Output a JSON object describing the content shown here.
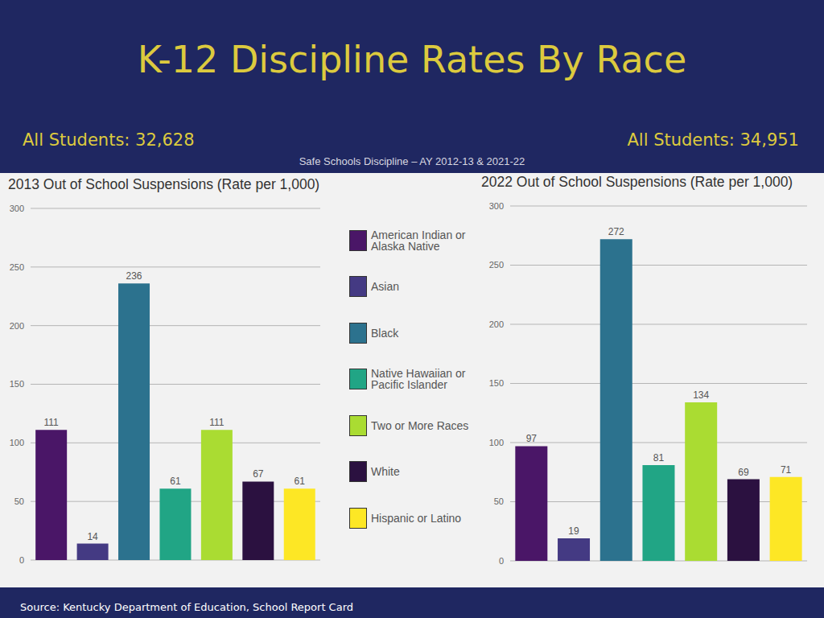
{
  "title": "K-12 Discipline Rates By Race",
  "subtitle": "Safe Schools Discipline – AY 2012-13 & 2021-22",
  "source": "Source: Kentucky Department of Education, School Report Card",
  "chart_data": [
    {
      "type": "bar",
      "title": "2013 Out of School Suspensions (Rate per 1,000)",
      "subtitle": "All Students: 32,628",
      "categories": [
        "American Indian or Alaska Native",
        "Asian",
        "Black",
        "Native Hawaiian or Pacific Islander",
        "Two or More Races",
        "White",
        "Hispanic or Latino"
      ],
      "values": [
        111,
        14,
        236,
        61,
        111,
        67,
        61
      ],
      "colors": [
        "#4a1667",
        "#443a83",
        "#2c728e",
        "#21a585",
        "#aadc32",
        "#2b1140",
        "#fde725"
      ],
      "ylim": [
        0,
        300
      ],
      "yticks": [
        0,
        50,
        100,
        150,
        200,
        250,
        300
      ],
      "grid": true,
      "data_labels": true,
      "tick_labels": "y",
      "legend": "right"
    },
    {
      "type": "bar",
      "title": "2022 Out of School Suspensions (Rate per 1,000)",
      "subtitle": "All Students: 34,951",
      "categories": [
        "American Indian or Alaska Native",
        "Asian",
        "Black",
        "Native Hawaiian or Pacific Islander",
        "Two or More Races",
        "White",
        "Hispanic or Latino"
      ],
      "values": [
        97,
        19,
        272,
        81,
        134,
        69,
        71
      ],
      "colors": [
        "#4a1667",
        "#443a83",
        "#2c728e",
        "#21a585",
        "#aadc32",
        "#2b1140",
        "#fde725"
      ],
      "ylim": [
        0,
        300
      ],
      "yticks": [
        0,
        50,
        100,
        150,
        200,
        250,
        300
      ],
      "grid": true,
      "data_labels": true,
      "tick_labels": "y"
    }
  ]
}
